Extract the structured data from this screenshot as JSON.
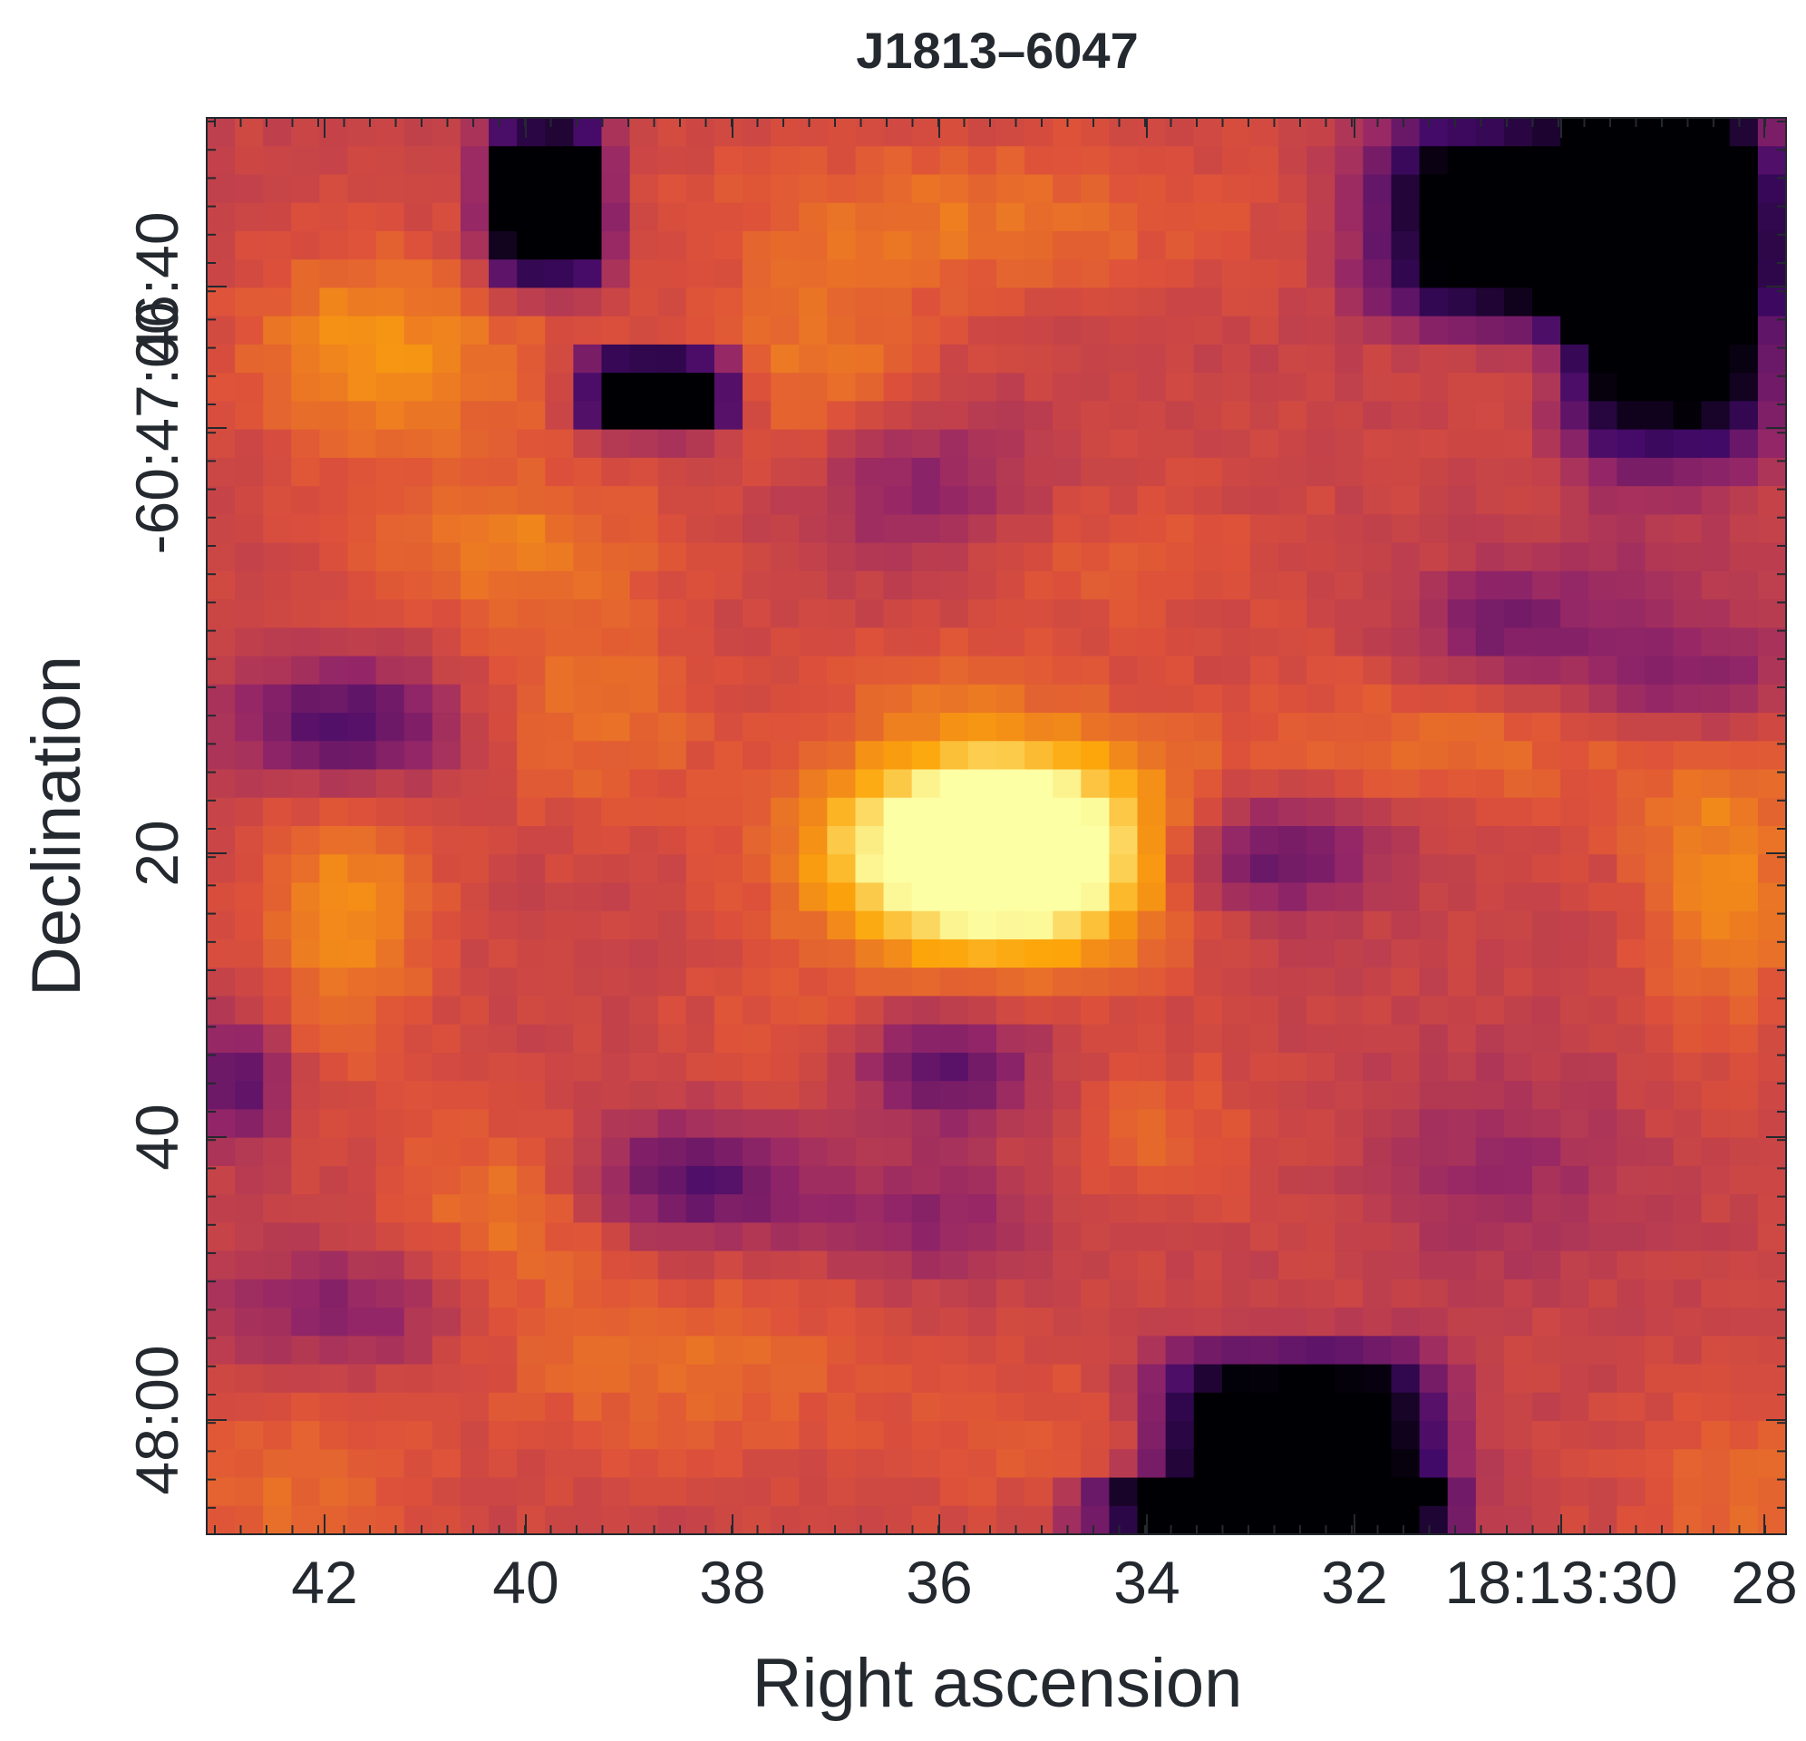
{
  "chart_data": {
    "type": "heatmap",
    "title": "J1813–6047",
    "xlabel": "Right ascension",
    "ylabel": "Declination",
    "colormap": "inferno",
    "x_tick_labels": [
      "42",
      "40",
      "38",
      "36",
      "34",
      "32",
      "18:13:30",
      "28"
    ],
    "y_tick_labels": [
      "46:40",
      "-60:47:00",
      "20",
      "40",
      "48:00"
    ],
    "grid": false,
    "legend": "none",
    "bright_source": "single bright compact source near image centre (RA ≈ 18:13:35.5)"
  },
  "colors": {
    "text": "#24292f",
    "frame": "#24292f",
    "colormap_stops": [
      "#000004",
      "#420a68",
      "#932667",
      "#dd513a",
      "#fca50a",
      "#fcffa4"
    ]
  }
}
